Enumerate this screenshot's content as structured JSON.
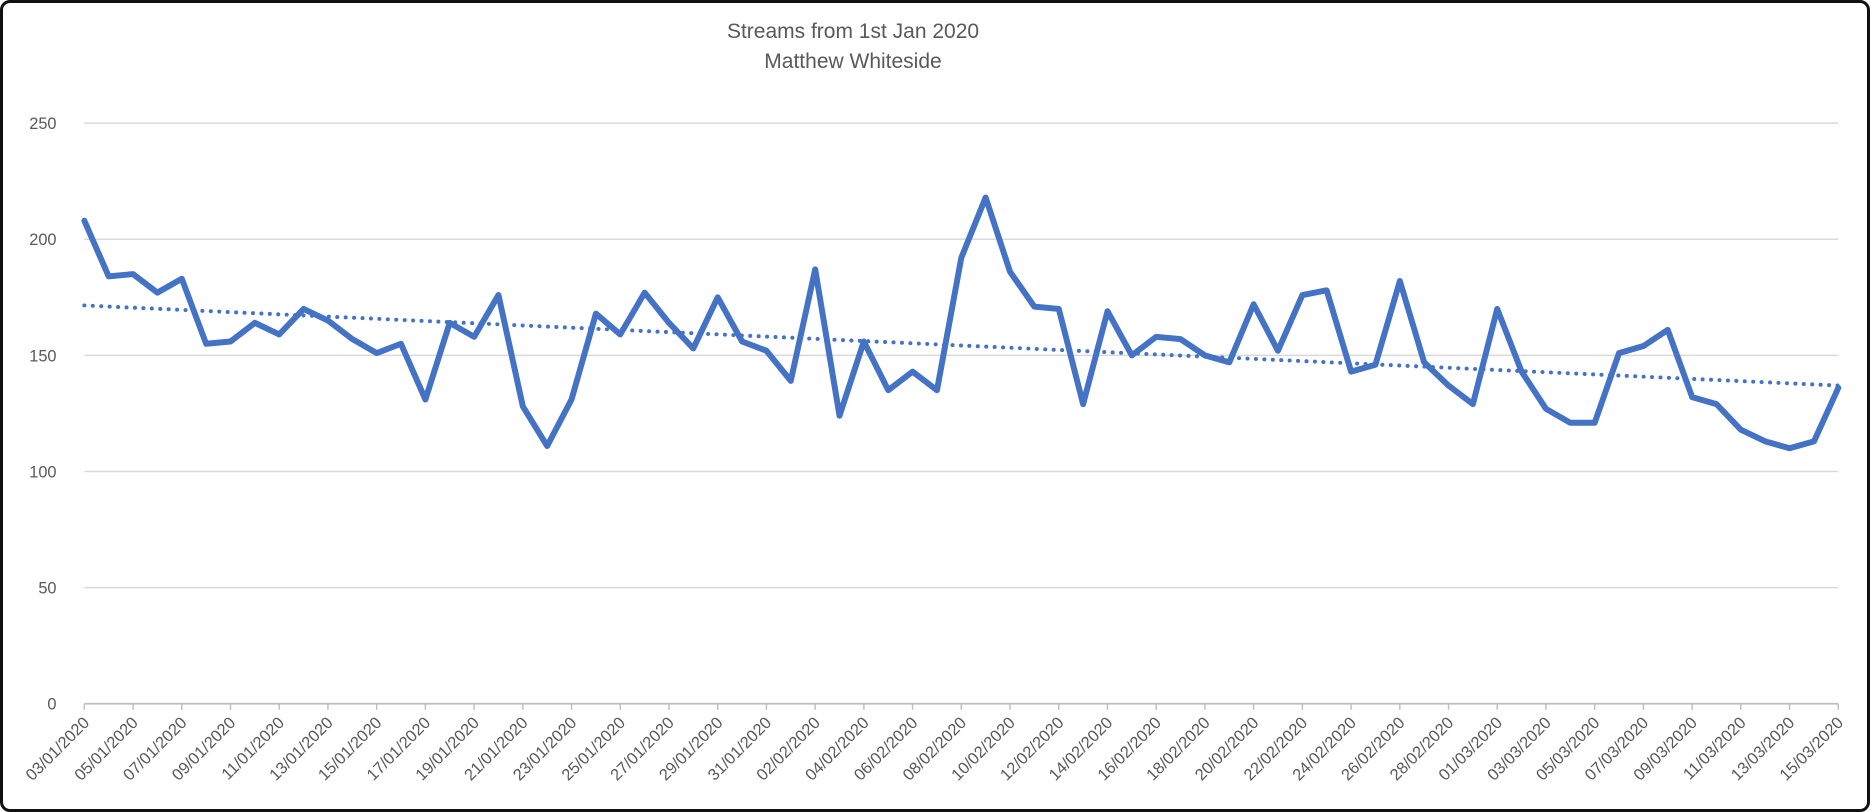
{
  "chart_data": {
    "type": "line",
    "title": "Streams from 1st Jan 2020",
    "subtitle": "Matthew Whiteside",
    "series": [
      {
        "name": "Streams",
        "values": [
          208,
          184,
          185,
          177,
          183,
          155,
          156,
          164,
          159,
          170,
          165,
          157,
          151,
          155,
          131,
          164,
          158,
          176,
          128,
          111,
          131,
          168,
          159,
          177,
          164,
          153,
          175,
          156,
          152,
          139,
          187,
          124,
          156,
          135,
          143,
          135,
          192,
          218,
          186,
          171,
          170,
          129,
          169,
          150,
          158,
          157,
          150,
          147,
          172,
          152,
          176,
          178,
          143,
          146,
          182,
          147,
          137,
          129,
          170,
          143,
          127,
          121,
          121,
          151,
          154,
          161,
          132,
          129,
          118,
          113,
          110,
          113,
          136
        ]
      }
    ],
    "x": [
      "03/01/2020",
      "04/01/2020",
      "05/01/2020",
      "06/01/2020",
      "07/01/2020",
      "08/01/2020",
      "09/01/2020",
      "10/01/2020",
      "11/01/2020",
      "12/01/2020",
      "13/01/2020",
      "14/01/2020",
      "15/01/2020",
      "16/01/2020",
      "17/01/2020",
      "18/01/2020",
      "19/01/2020",
      "20/01/2020",
      "21/01/2020",
      "22/01/2020",
      "23/01/2020",
      "24/01/2020",
      "25/01/2020",
      "26/01/2020",
      "27/01/2020",
      "28/01/2020",
      "29/01/2020",
      "30/01/2020",
      "31/01/2020",
      "01/02/2020",
      "02/02/2020",
      "03/02/2020",
      "04/02/2020",
      "05/02/2020",
      "06/02/2020",
      "07/02/2020",
      "08/02/2020",
      "09/02/2020",
      "10/02/2020",
      "11/02/2020",
      "12/02/2020",
      "13/02/2020",
      "14/02/2020",
      "15/02/2020",
      "16/02/2020",
      "17/02/2020",
      "18/02/2020",
      "19/02/2020",
      "20/02/2020",
      "21/02/2020",
      "22/02/2020",
      "23/02/2020",
      "24/02/2020",
      "25/02/2020",
      "26/02/2020",
      "27/02/2020",
      "28/02/2020",
      "29/02/2020",
      "01/03/2020",
      "02/03/2020",
      "03/03/2020",
      "04/03/2020",
      "05/03/2020",
      "06/03/2020",
      "07/03/2020",
      "08/03/2020",
      "09/03/2020",
      "10/03/2020",
      "11/03/2020",
      "12/03/2020",
      "13/03/2020",
      "14/03/2020",
      "15/03/2020"
    ],
    "x_tick_labels": [
      "03/01/2020",
      "05/01/2020",
      "07/01/2020",
      "09/01/2020",
      "11/01/2020",
      "13/01/2020",
      "15/01/2020",
      "17/01/2020",
      "19/01/2020",
      "21/01/2020",
      "23/01/2020",
      "25/01/2020",
      "27/01/2020",
      "29/01/2020",
      "31/01/2020",
      "02/02/2020",
      "04/02/2020",
      "06/02/2020",
      "08/02/2020",
      "10/02/2020",
      "12/02/2020",
      "14/02/2020",
      "16/02/2020",
      "18/02/2020",
      "20/02/2020",
      "22/02/2020",
      "24/02/2020",
      "26/02/2020",
      "28/02/2020",
      "01/03/2020",
      "03/03/2020",
      "05/03/2020",
      "07/03/2020",
      "09/03/2020",
      "11/03/2020",
      "13/03/2020",
      "15/03/2020"
    ],
    "y_ticks": [
      0,
      50,
      100,
      150,
      200,
      250
    ],
    "ylim": [
      0,
      250
    ],
    "grid": true,
    "legend": "none",
    "trendline": {
      "style": "dotted",
      "start_value": 171.5,
      "end_value": 137
    },
    "colors": {
      "line": "#4472C4",
      "trendline": "#4472C4",
      "gridline": "#D9D9D9",
      "axis": "#BFBFBF",
      "text": "#595959"
    }
  }
}
